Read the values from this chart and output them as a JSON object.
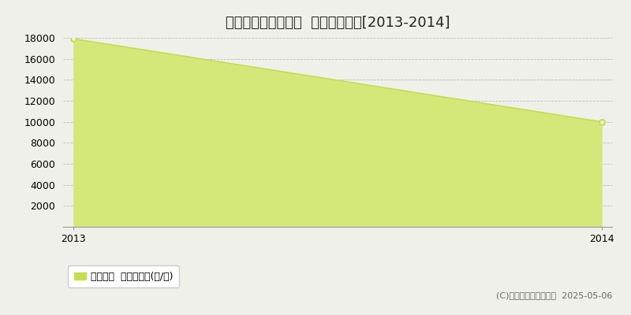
{
  "title": "中新川郡立山町横沢  農地価格推移[2013-2014]",
  "x": [
    2013,
    2014
  ],
  "y": [
    17900,
    10000
  ],
  "ylim": [
    0,
    18000
  ],
  "yticks": [
    0,
    2000,
    4000,
    6000,
    8000,
    10000,
    12000,
    14000,
    16000,
    18000
  ],
  "xlim": [
    2013,
    2014
  ],
  "xticks": [
    2013,
    2014
  ],
  "line_color": "#c8dc50",
  "fill_color": "#d4e87a",
  "fill_alpha": 1.0,
  "marker_color": "#c8dc50",
  "bg_color": "#f0f0eb",
  "plot_bg_color": "#f0f0eb",
  "grid_color": "#bbbbbb",
  "legend_label": "農地価格  平均嵪単価(円/嵪)",
  "legend_color": "#c8dc50",
  "copyright": "(C)土地価格ドットコム  2025-05-06",
  "title_fontsize": 13,
  "tick_fontsize": 9,
  "legend_fontsize": 9,
  "copyright_fontsize": 8
}
